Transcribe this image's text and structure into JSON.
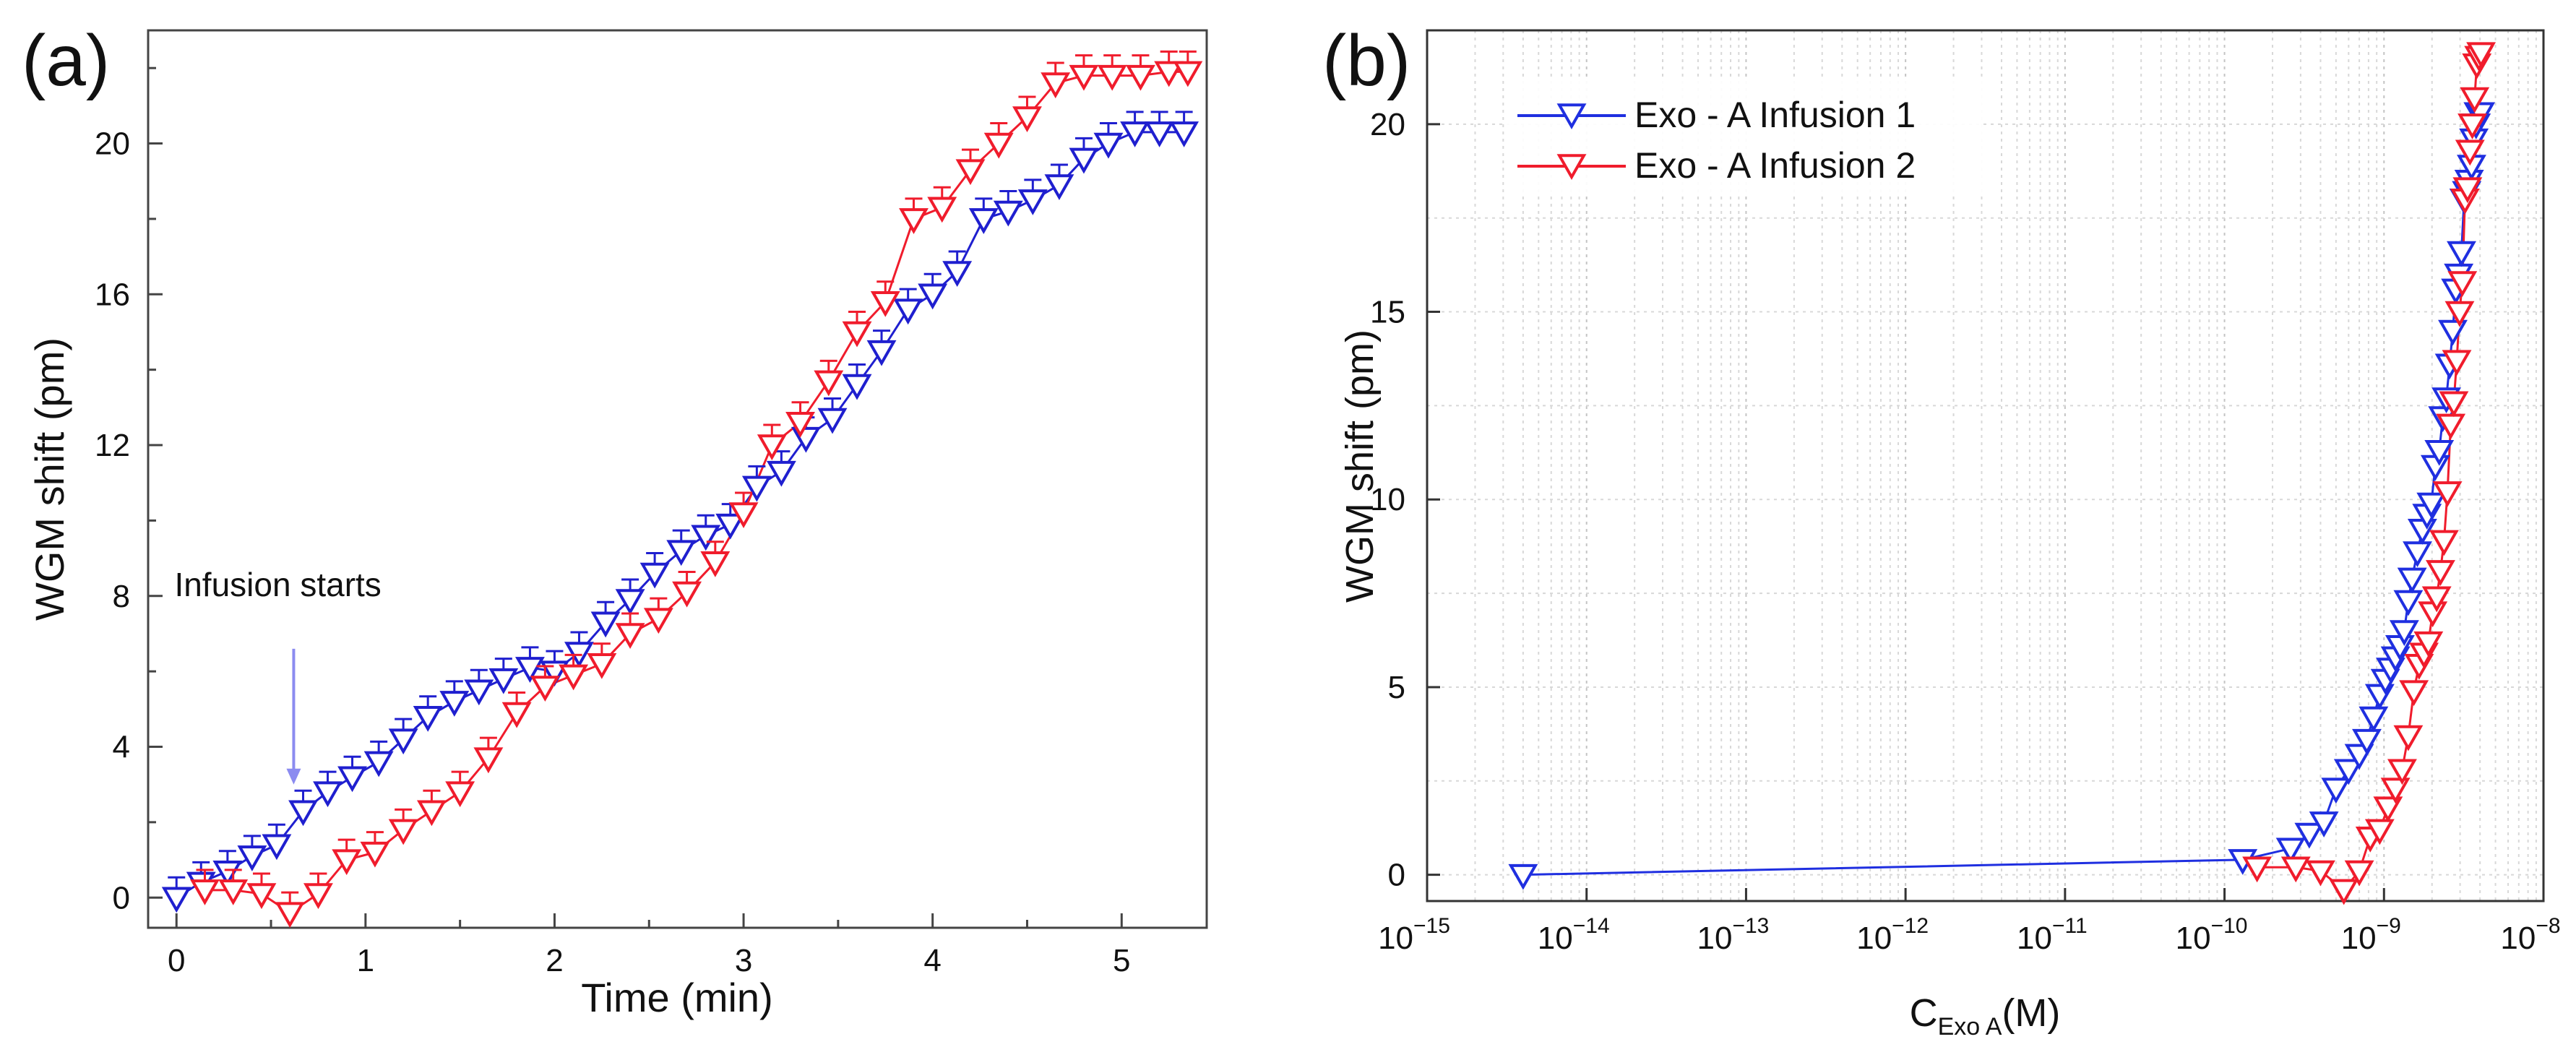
{
  "chart_data": [
    {
      "panel_label": "(a)",
      "type": "scatter",
      "xlabel": "Time (min)",
      "ylabel": "WGM shift (pm)",
      "xlim": [
        -0.15,
        5.45
      ],
      "ylim": [
        -0.8,
        23.0
      ],
      "xticks": [
        0,
        1,
        2,
        3,
        4,
        5
      ],
      "yticks": [
        0,
        4,
        8,
        12,
        16,
        20
      ],
      "grid": false,
      "annotation": {
        "text": "Infusion starts",
        "x": 0.62,
        "y": 3.0,
        "color": "#8b8bf0"
      },
      "series": [
        {
          "color": "#1f1fcf",
          "marker": "triangle-down-open",
          "x": [
            0.0,
            0.13,
            0.27,
            0.4,
            0.53,
            0.67,
            0.8,
            0.93,
            1.07,
            1.2,
            1.33,
            1.47,
            1.6,
            1.73,
            1.87,
            2.0,
            2.13,
            2.27,
            2.4,
            2.53,
            2.67,
            2.8,
            2.93,
            3.07,
            3.2,
            3.33,
            3.47,
            3.6,
            3.73,
            3.87,
            4.0,
            4.13,
            4.27,
            4.4,
            4.53,
            4.67,
            4.8,
            4.93,
            5.07,
            5.2,
            5.33
          ],
          "y": [
            0.0,
            0.4,
            0.7,
            1.1,
            1.4,
            2.3,
            2.8,
            3.2,
            3.6,
            4.2,
            4.8,
            5.2,
            5.5,
            5.8,
            6.1,
            6.0,
            6.5,
            7.3,
            7.9,
            8.6,
            9.2,
            9.6,
            9.9,
            10.9,
            11.3,
            12.2,
            12.7,
            13.6,
            14.5,
            15.6,
            16.0,
            16.6,
            18.0,
            18.2,
            18.5,
            18.9,
            19.6,
            20.0,
            20.3,
            20.3,
            20.3
          ]
        },
        {
          "color": "#f01c2c",
          "marker": "triangle-down-open",
          "x": [
            0.15,
            0.3,
            0.45,
            0.6,
            0.75,
            0.9,
            1.05,
            1.2,
            1.35,
            1.5,
            1.65,
            1.8,
            1.95,
            2.1,
            2.25,
            2.4,
            2.55,
            2.7,
            2.85,
            3.0,
            3.15,
            3.3,
            3.45,
            3.6,
            3.75,
            3.9,
            4.05,
            4.2,
            4.35,
            4.5,
            4.65,
            4.8,
            4.95,
            5.1,
            5.25,
            5.35
          ],
          "y": [
            0.2,
            0.2,
            0.1,
            -0.4,
            0.1,
            1.0,
            1.2,
            1.8,
            2.3,
            2.8,
            3.7,
            4.9,
            5.6,
            5.9,
            6.2,
            7.0,
            7.4,
            8.1,
            8.9,
            10.2,
            12.0,
            12.6,
            13.7,
            15.0,
            15.8,
            18.0,
            18.3,
            19.3,
            20.0,
            20.7,
            21.6,
            21.8,
            21.8,
            21.8,
            21.9,
            21.9
          ]
        }
      ]
    },
    {
      "panel_label": "(b)",
      "type": "line",
      "xlabel": "C",
      "xlabel_sub": "Exo A",
      "xlabel_unit": "(M)",
      "ylabel": "WGM shift (pm)",
      "x_scale": "log",
      "xlim": [
        1e-15,
        1e-08
      ],
      "ylim": [
        -0.7,
        22.5
      ],
      "xticks": [
        {
          "base": "10",
          "exp": "−15"
        },
        {
          "base": "10",
          "exp": "−14"
        },
        {
          "base": "10",
          "exp": "−13"
        },
        {
          "base": "10",
          "exp": "−12"
        },
        {
          "base": "10",
          "exp": "−11"
        },
        {
          "base": "10",
          "exp": "−10"
        },
        {
          "base": "10",
          "exp": "−9"
        },
        {
          "base": "10",
          "exp": "−8"
        }
      ],
      "yticks": [
        0,
        5,
        10,
        15,
        20
      ],
      "grid": true,
      "legend_position": "top-left",
      "series": [
        {
          "name": "Exo - A Infusion 1",
          "color": "#1f2fe0",
          "marker": "triangle-down-open",
          "x": [
            4e-15,
            1.3e-10,
            2.6e-10,
            3.4e-10,
            4.2e-10,
            5e-10,
            6e-10,
            7e-10,
            7.8e-10,
            8.6e-10,
            9.4e-10,
            1.02e-09,
            1.1e-09,
            1.18e-09,
            1.26e-09,
            1.34e-09,
            1.42e-09,
            1.5e-09,
            1.62e-09,
            1.74e-09,
            1.86e-09,
            1.98e-09,
            2.1e-09,
            2.22e-09,
            2.34e-09,
            2.46e-09,
            2.58e-09,
            2.7e-09,
            2.82e-09,
            2.94e-09,
            3.06e-09,
            3.18e-09,
            3.3e-09,
            3.42e-09,
            3.54e-09,
            3.66e-09,
            3.78e-09,
            3.9e-09,
            4.02e-09
          ],
          "y": [
            0.0,
            0.4,
            0.7,
            1.1,
            1.4,
            2.3,
            2.8,
            3.2,
            3.6,
            4.2,
            4.8,
            5.2,
            5.5,
            5.8,
            6.1,
            6.5,
            7.3,
            7.9,
            8.6,
            9.2,
            9.6,
            9.9,
            10.9,
            11.3,
            12.2,
            12.7,
            13.6,
            14.5,
            15.6,
            16.0,
            16.6,
            18.0,
            18.2,
            18.5,
            18.9,
            19.6,
            20.0,
            20.3,
            20.3
          ]
        },
        {
          "name": "Exo - A Infusion 2",
          "color": "#f01c2c",
          "marker": "triangle-down-open",
          "x": [
            1.6e-10,
            2.8e-10,
            4e-10,
            5.6e-10,
            7e-10,
            8.2e-10,
            9.4e-10,
            1.06e-09,
            1.18e-09,
            1.3e-09,
            1.42e-09,
            1.54e-09,
            1.66e-09,
            1.78e-09,
            1.9e-09,
            2.02e-09,
            2.14e-09,
            2.26e-09,
            2.38e-09,
            2.5e-09,
            2.62e-09,
            2.74e-09,
            2.86e-09,
            2.98e-09,
            3.1e-09,
            3.22e-09,
            3.34e-09,
            3.46e-09,
            3.58e-09,
            3.7e-09,
            3.82e-09,
            3.94e-09,
            4.06e-09
          ],
          "y": [
            0.2,
            0.2,
            0.1,
            -0.4,
            0.1,
            1.0,
            1.2,
            1.8,
            2.3,
            2.8,
            3.7,
            4.9,
            5.6,
            5.9,
            6.2,
            7.0,
            7.4,
            8.1,
            8.9,
            10.2,
            12.0,
            12.6,
            13.7,
            15.0,
            15.8,
            18.0,
            18.3,
            19.3,
            20.0,
            20.7,
            21.6,
            21.8,
            21.9
          ]
        }
      ]
    }
  ]
}
